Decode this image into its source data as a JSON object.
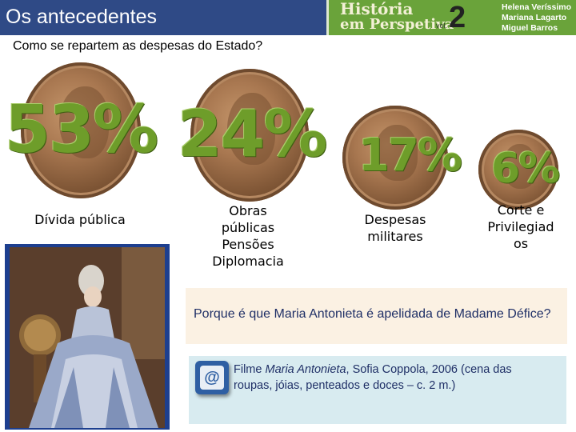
{
  "header": {
    "title": "Os antecedentes",
    "book_title": "História",
    "book_subtitle": "em Perspetiva",
    "volume_label": "vol.",
    "volume_number": "2",
    "authors": [
      "Helena Veríssimo",
      "Mariana Lagarto",
      "Miguel Barros"
    ]
  },
  "subtitle": "Como se repartem as despesas do Estado?",
  "expenses": [
    {
      "percent": "53%",
      "label_lines": [
        "Dívida pública"
      ]
    },
    {
      "percent": "24%",
      "label_lines": [
        "Obras",
        "públicas",
        "Pensões",
        "Diplomacia"
      ]
    },
    {
      "percent": "17%",
      "label_lines": [
        "Despesas",
        "militares"
      ]
    },
    {
      "percent": "6%",
      "label_lines": [
        "Corte e",
        "Privilegiad",
        "os"
      ]
    }
  ],
  "question": "Porque é que Maria Antonieta é apelidada de Madame Défice?",
  "film": {
    "prefix": "Filme ",
    "title": "Maria Antonieta",
    "rest": ", Sofia Coppola, 2006 (cena das roupas, jóias, penteados e doces – c. 2 m.)"
  },
  "colors": {
    "header_bg": "#2f4a86",
    "banner_bg": "#6aa33a",
    "percent_green": "#6e9d2a",
    "question_bg": "#fbf1e3",
    "film_bg": "#d8ebf0"
  },
  "icons": {
    "film_icon": "at-sign-icon",
    "coin_image": "louis-xvi-coin-image",
    "portrait_image": "marie-antoinette-portrait-image"
  }
}
